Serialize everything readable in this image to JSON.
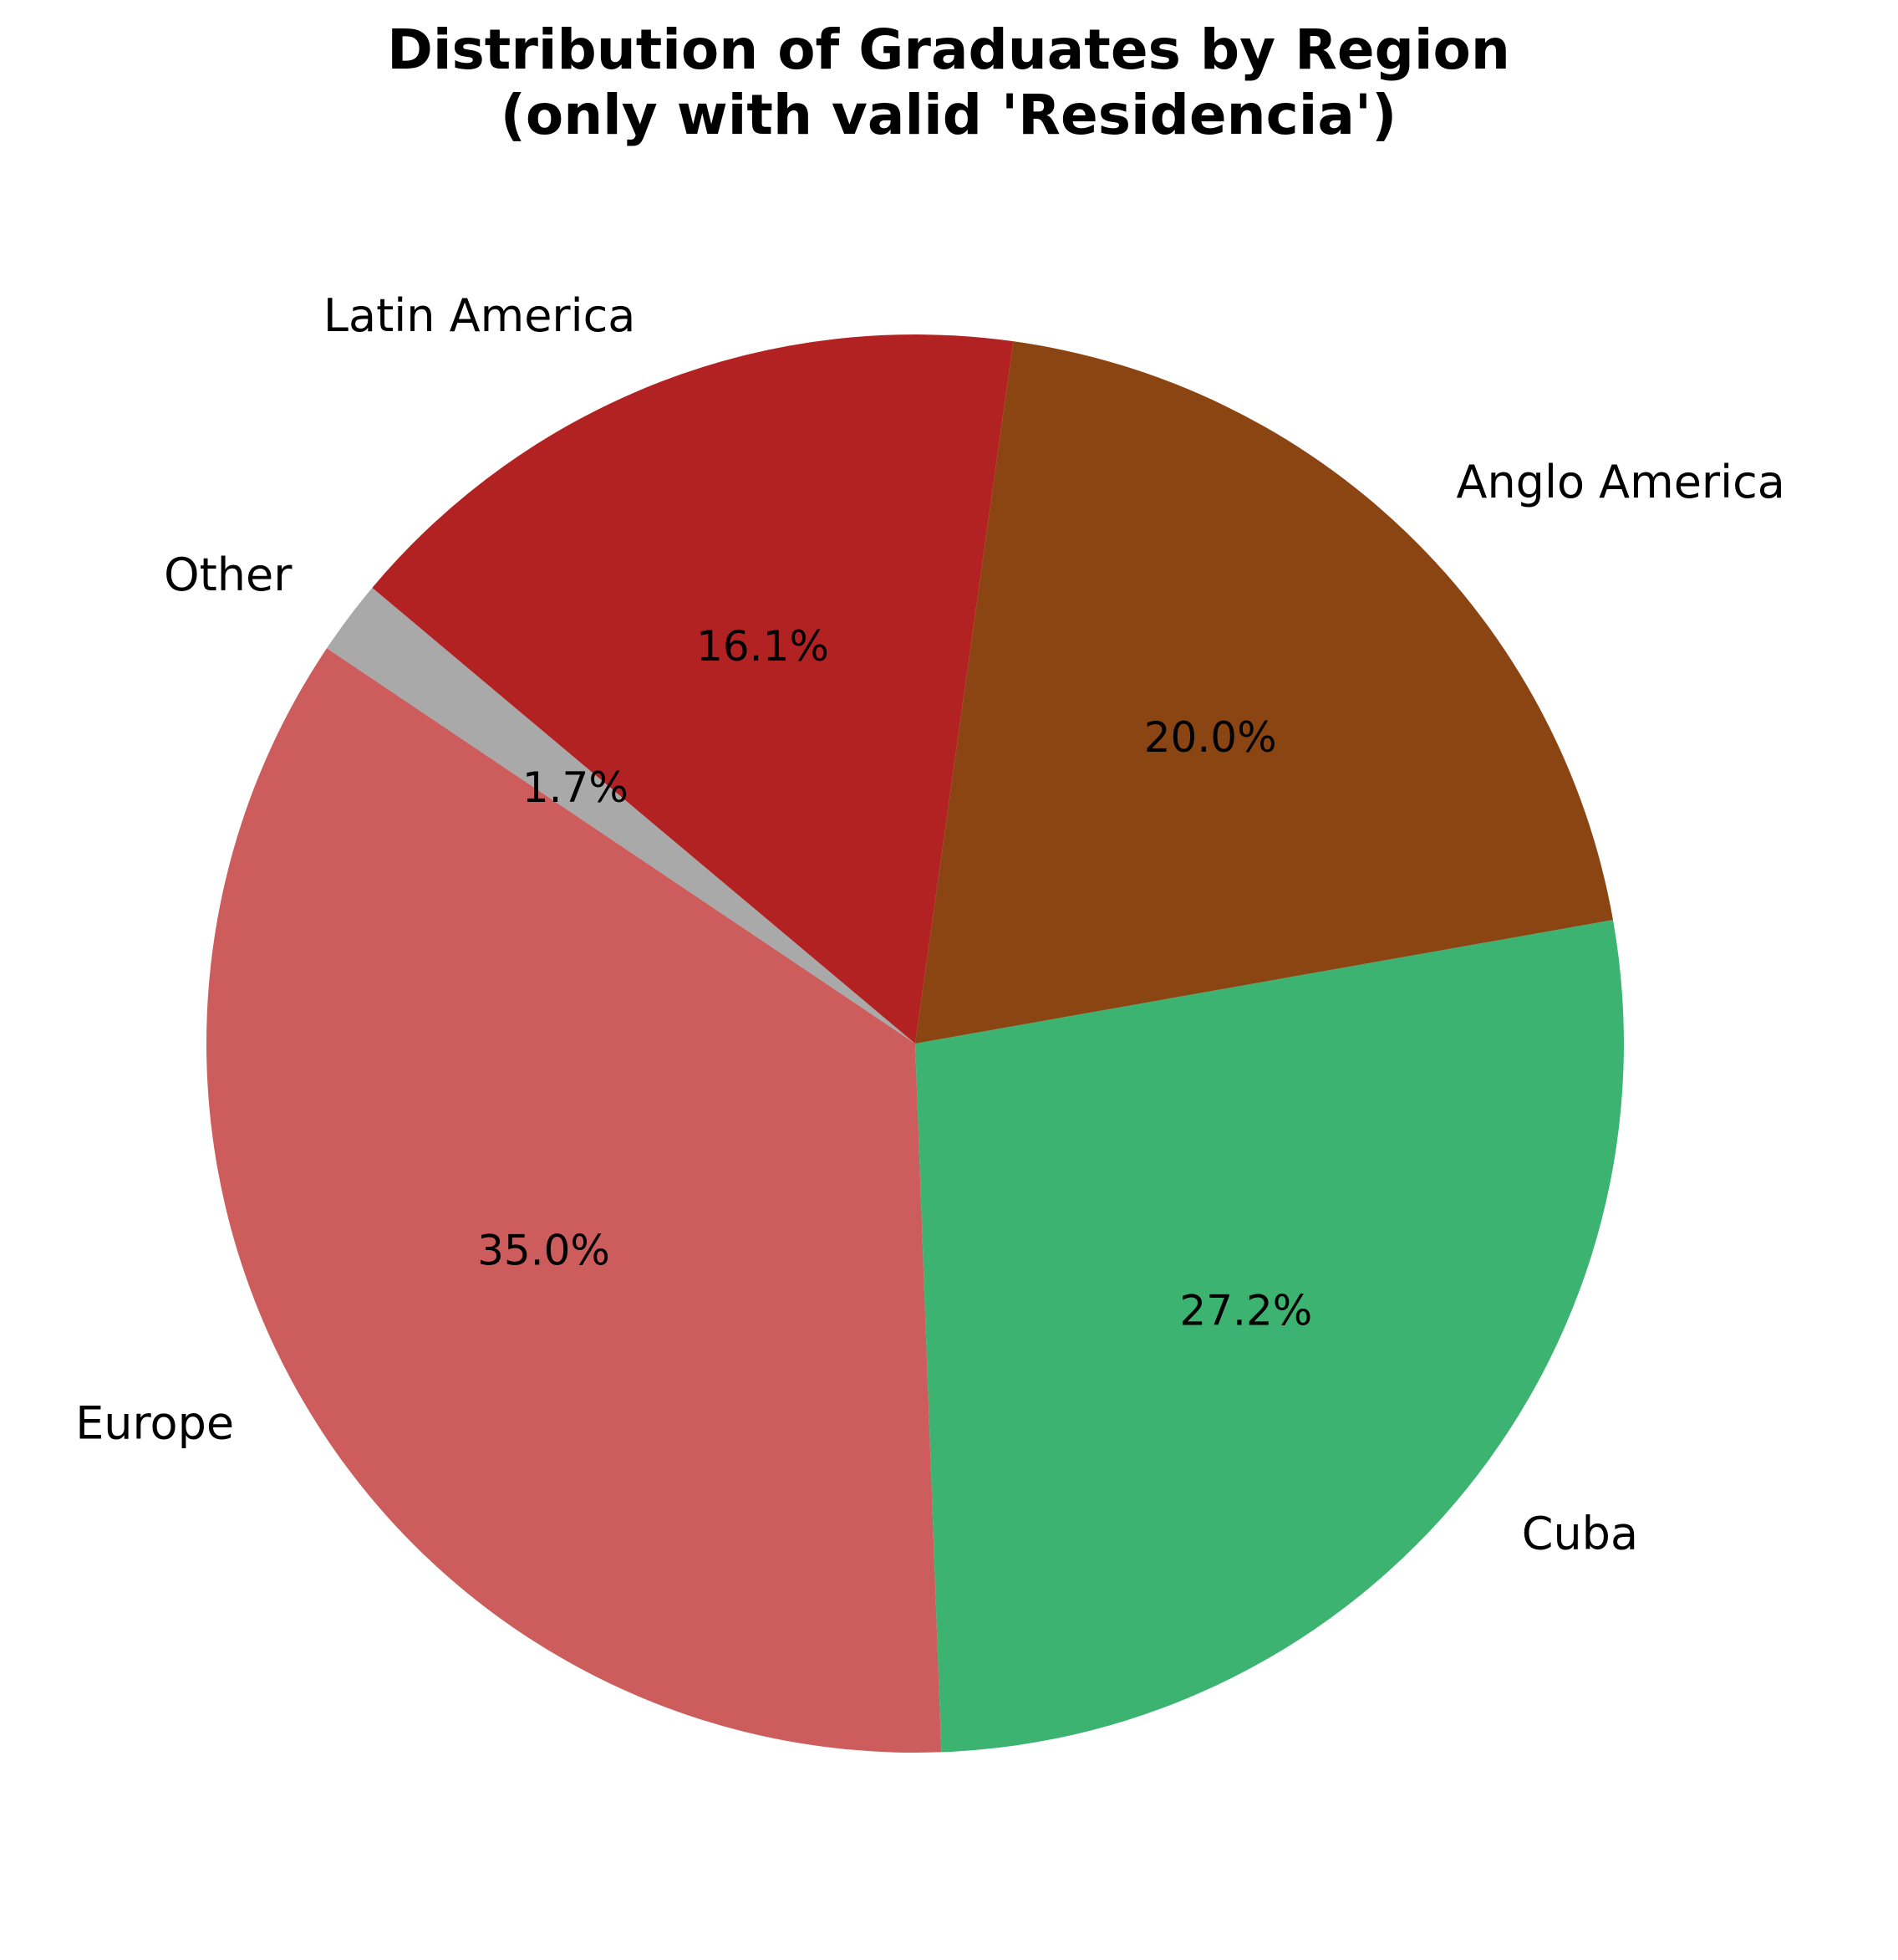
{
  "chart_data": {
    "type": "pie",
    "title_lines": [
      "Distribution of Graduates by Region",
      "(only with valid 'Residencia')"
    ],
    "start_angle_deg": 140,
    "direction": "counterclockwise",
    "slices": [
      {
        "label": "Other",
        "value": 1.7,
        "value_label": "1.7%",
        "color": "#a9a9a9"
      },
      {
        "label": "Europe",
        "value": 35.0,
        "value_label": "35.0%",
        "color": "#cd5c5c"
      },
      {
        "label": "Cuba",
        "value": 27.2,
        "value_label": "27.2%",
        "color": "#3cb371"
      },
      {
        "label": "Anglo America",
        "value": 20.0,
        "value_label": "20.0%",
        "color": "#8b4513"
      },
      {
        "label": "Latin America",
        "value": 16.1,
        "value_label": "16.1%",
        "color": "#b22222"
      }
    ]
  }
}
